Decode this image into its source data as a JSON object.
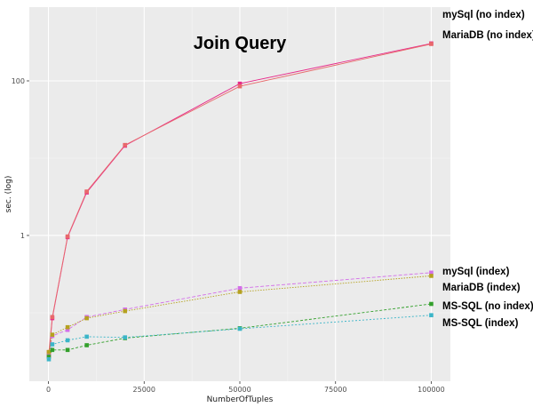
{
  "chart_data": {
    "type": "line",
    "title": "Join Query",
    "xlabel": "NumberOfTuples",
    "ylabel": "sec.  (log)",
    "x_scale": "linear",
    "y_scale": "log",
    "xlim": [
      -5000,
      105000
    ],
    "ylim": [
      0.013,
      900
    ],
    "x_ticks": [
      0,
      25000,
      50000,
      75000,
      100000
    ],
    "x_tick_labels": [
      "0",
      "25000",
      "50000",
      "75000",
      "100000"
    ],
    "y_ticks": [
      1,
      100
    ],
    "y_tick_labels": [
      "1",
      "100"
    ],
    "grid": true,
    "x": [
      100,
      1000,
      5000,
      10000,
      20000,
      50000,
      100000
    ],
    "series": [
      {
        "name": "mySql (no index)",
        "color": "#e7298a",
        "values": [
          0.028,
          0.085,
          0.95,
          3.6,
          14.5,
          92,
          305
        ]
      },
      {
        "name": "MariaDB (no index)",
        "color": "#e8696b",
        "values": [
          0.031,
          0.088,
          0.97,
          3.7,
          14.8,
          85,
          300
        ]
      },
      {
        "name": "mySql (index)",
        "color": "#d36fe8",
        "values": [
          0.029,
          0.05,
          0.06,
          0.088,
          0.11,
          0.208,
          0.33
        ]
      },
      {
        "name": "MariaDB (index)",
        "color": "#b5a11f",
        "values": [
          0.031,
          0.052,
          0.065,
          0.085,
          0.105,
          0.186,
          0.3
        ]
      },
      {
        "name": "MS-SQL (no index)",
        "color": "#33a02c",
        "values": [
          0.027,
          0.033,
          0.033,
          0.038,
          0.047,
          0.063,
          0.13
        ]
      },
      {
        "name": "MS-SQL (index)",
        "color": "#3bb5c8",
        "values": [
          0.025,
          0.039,
          0.044,
          0.049,
          0.048,
          0.062,
          0.093
        ]
      }
    ]
  }
}
